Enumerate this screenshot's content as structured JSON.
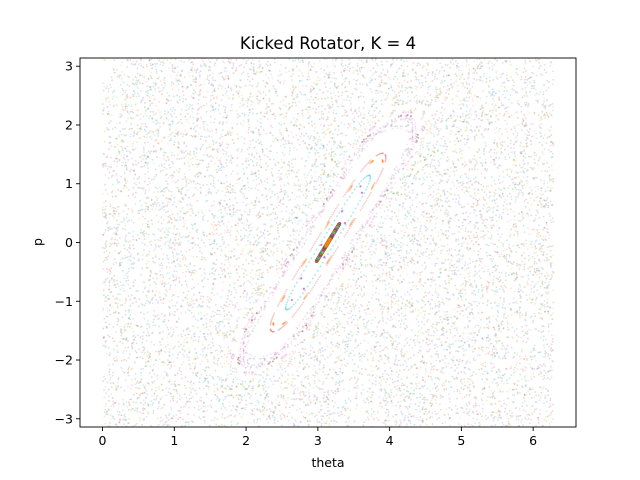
{
  "chart_data": {
    "type": "scatter",
    "title": "Kicked Rotator, K = 4",
    "xlabel": "theta",
    "ylabel": "p",
    "xlim": [
      -0.314,
      6.597
    ],
    "ylim": [
      -3.14,
      3.14
    ],
    "xticks": [
      0,
      1,
      2,
      3,
      4,
      5,
      6
    ],
    "yticks": [
      -3,
      -2,
      -1,
      0,
      1,
      2,
      3
    ],
    "grid": false,
    "legend": "none",
    "island_center": {
      "x": 3.1416,
      "y": 0.0
    },
    "island_outer_extent": {
      "theta": [
        1.95,
        4.4
      ],
      "p": [
        -2.1,
        2.2
      ]
    },
    "chaotic_sea_domain": {
      "theta": [
        0,
        6.283
      ],
      "p": [
        -3.1416,
        3.1416
      ]
    },
    "palette": [
      "#1f77b4",
      "#ff7f0e",
      "#2ca02c",
      "#d62728",
      "#9467bd",
      "#8c564b",
      "#e377c2",
      "#7f7f7f",
      "#bcbd22",
      "#17becf"
    ]
  }
}
